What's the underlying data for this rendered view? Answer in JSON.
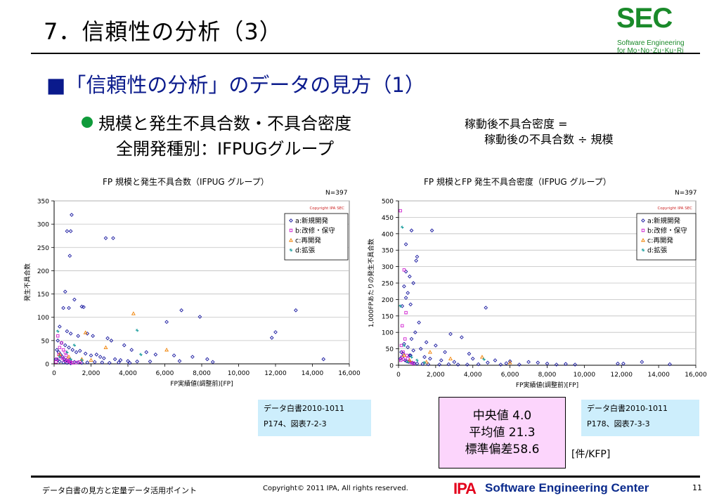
{
  "slide": {
    "title": "7．信頼性の分析（3）",
    "logo": {
      "main": "SEC",
      "sub1": "Software Engineering",
      "sub2": "for Mo･No･Zu･Ku･Ri"
    },
    "heading": "■「信頼性の分析」のデータの見方（1）",
    "bullet_line1": "規模と発生不具合数・不具合密度",
    "bullet_line2": "全開発種別：IFPUGグループ",
    "formula_line1": "稼動後不具合密度 =",
    "formula_line2": "稼動後の不具合数 ÷ 規模",
    "ref_left": {
      "line1": "データ白書2010-1011",
      "line2": "P174、図表7-2-3"
    },
    "ref_right": {
      "line1": "データ白書2010-1011",
      "line2": "P178、図表7-3-3"
    },
    "stats": {
      "median": "中央値  4.0",
      "mean": "平均値  21.3",
      "std": "標準偏差58.6"
    },
    "unit": "[件/KFP]",
    "footer": {
      "left": "データ白書の見方と定量データ活用ポイント",
      "copyright": "Copyright© 2011 IPA, All rights reserved.",
      "ipa": "IPA",
      "center": "Software Engineering Center",
      "page": "11"
    }
  },
  "colors": {
    "green": "#1a8a2a",
    "heading_blue": "#0a1a8c",
    "series_a": "#1a1aa0",
    "series_b": "#d020d0",
    "series_c": "#f08000",
    "series_d": "#20a0a0"
  },
  "chart_data": [
    {
      "type": "scatter",
      "title": "FP 規模と発生不具合数（IFPUG グループ）",
      "n_label": "N=397",
      "copyright": "Copyright IPA SEC",
      "xlabel": "FP実績値(調整前)[FP]",
      "ylabel": "発生不具合数",
      "xlim": [
        0,
        16000
      ],
      "ylim": [
        0,
        350
      ],
      "xticks": [
        0,
        2000,
        4000,
        6000,
        8000,
        10000,
        12000,
        14000,
        16000
      ],
      "xtick_labels": [
        "0",
        "2,000",
        "4,000",
        "6,000",
        "8,000",
        "10,000",
        "12,000",
        "14,000",
        "16,000"
      ],
      "yticks": [
        0,
        50,
        100,
        150,
        200,
        250,
        300,
        350
      ],
      "ytick_labels": [
        "0",
        "50",
        "100",
        "150",
        "200",
        "250",
        "300",
        "350"
      ],
      "legend_position": "top-right",
      "series": [
        {
          "name": "a:新規開発",
          "marker": "diamond",
          "points": [
            [
              950,
              320
            ],
            [
              700,
              285
            ],
            [
              900,
              285
            ],
            [
              850,
              232
            ],
            [
              2800,
              270
            ],
            [
              3200,
              270
            ],
            [
              600,
              155
            ],
            [
              1100,
              138
            ],
            [
              1500,
              123
            ],
            [
              1600,
              122
            ],
            [
              500,
              120
            ],
            [
              800,
              120
            ],
            [
              6900,
              115
            ],
            [
              13100,
              115
            ],
            [
              7900,
              101
            ],
            [
              6100,
              90
            ],
            [
              12000,
              68
            ],
            [
              11800,
              56
            ],
            [
              300,
              80
            ],
            [
              700,
              70
            ],
            [
              900,
              65
            ],
            [
              1300,
              60
            ],
            [
              1800,
              65
            ],
            [
              2100,
              60
            ],
            [
              2900,
              55
            ],
            [
              3100,
              50
            ],
            [
              3800,
              40
            ],
            [
              4200,
              30
            ],
            [
              5000,
              25
            ],
            [
              5500,
              20
            ],
            [
              6500,
              18
            ],
            [
              7500,
              15
            ],
            [
              8300,
              10
            ],
            [
              14600,
              10
            ],
            [
              200,
              50
            ],
            [
              400,
              45
            ],
            [
              600,
              40
            ],
            [
              800,
              35
            ],
            [
              1000,
              30
            ],
            [
              1200,
              25
            ],
            [
              1400,
              28
            ],
            [
              1700,
              22
            ],
            [
              2000,
              18
            ],
            [
              2300,
              20
            ],
            [
              2500,
              15
            ],
            [
              2700,
              12
            ],
            [
              3300,
              10
            ],
            [
              3600,
              8
            ],
            [
              4000,
              6
            ],
            [
              4500,
              5
            ],
            [
              5200,
              5
            ],
            [
              6800,
              6
            ],
            [
              8600,
              4
            ],
            [
              150,
              30
            ],
            [
              250,
              25
            ],
            [
              350,
              20
            ],
            [
              450,
              15
            ],
            [
              550,
              10
            ],
            [
              650,
              8
            ],
            [
              750,
              6
            ],
            [
              900,
              5
            ],
            [
              1100,
              4
            ],
            [
              1300,
              3
            ],
            [
              1500,
              2
            ],
            [
              1800,
              3
            ],
            [
              2200,
              4
            ],
            [
              2600,
              3
            ],
            [
              3000,
              2
            ],
            [
              3500,
              3
            ],
            [
              4100,
              2
            ],
            [
              100,
              10
            ],
            [
              200,
              8
            ],
            [
              300,
              5
            ],
            [
              500,
              3
            ],
            [
              700,
              2
            ],
            [
              900,
              1
            ]
          ]
        },
        {
          "name": "b:改修・保守",
          "marker": "square",
          "points": [
            [
              200,
              60
            ],
            [
              400,
              45
            ],
            [
              300,
              35
            ],
            [
              500,
              30
            ],
            [
              600,
              25
            ],
            [
              250,
              20
            ],
            [
              350,
              15
            ],
            [
              450,
              12
            ],
            [
              150,
              10
            ],
            [
              550,
              8
            ],
            [
              700,
              6
            ],
            [
              800,
              5
            ],
            [
              100,
              4
            ],
            [
              900,
              3
            ],
            [
              1000,
              2
            ],
            [
              1200,
              3
            ],
            [
              1400,
              4
            ],
            [
              650,
              18
            ],
            [
              750,
              10
            ],
            [
              850,
              8
            ]
          ]
        },
        {
          "name": "c:再開発",
          "marker": "triangle",
          "points": [
            [
              4300,
              108
            ],
            [
              1700,
              67
            ],
            [
              2800,
              35
            ],
            [
              6100,
              30
            ],
            [
              300,
              20
            ],
            [
              800,
              15
            ],
            [
              1500,
              10
            ],
            [
              2000,
              8
            ]
          ]
        },
        {
          "name": "d:拡張",
          "marker": "star",
          "points": [
            [
              4500,
              72
            ],
            [
              200,
              70
            ],
            [
              1100,
              40
            ],
            [
              700,
              25
            ],
            [
              300,
              15
            ],
            [
              900,
              10
            ],
            [
              1500,
              8
            ],
            [
              4700,
              20
            ]
          ]
        }
      ]
    },
    {
      "type": "scatter",
      "title": "FP 規模とFP 発生不具合密度（IFPUG グループ）",
      "n_label": "N=397",
      "copyright": "Copyright IPA SEC",
      "xlabel": "FP実績値(調整前)[FP]",
      "ylabel": "1,000FPあたりの発生不具合数",
      "xlim": [
        0,
        16000
      ],
      "ylim": [
        0,
        500
      ],
      "xticks": [
        0,
        2000,
        4000,
        6000,
        8000,
        10000,
        12000,
        14000,
        16000
      ],
      "xtick_labels": [
        "0",
        "2,000",
        "4,000",
        "6,000",
        "8,000",
        "10,000",
        "12,000",
        "14,000",
        "16,000"
      ],
      "yticks": [
        0,
        50,
        100,
        150,
        200,
        250,
        300,
        350,
        400,
        450,
        500
      ],
      "ytick_labels": [
        "0",
        "50",
        "100",
        "150",
        "200",
        "250",
        "300",
        "350",
        "400",
        "450",
        "500"
      ],
      "legend_position": "top-right",
      "series": [
        {
          "name": "a:新規開発",
          "marker": "diamond",
          "points": [
            [
              700,
              410
            ],
            [
              1800,
              410
            ],
            [
              400,
              368
            ],
            [
              1000,
              330
            ],
            [
              950,
              318
            ],
            [
              400,
              285
            ],
            [
              600,
              270
            ],
            [
              800,
              250
            ],
            [
              300,
              240
            ],
            [
              500,
              220
            ],
            [
              400,
              205
            ],
            [
              650,
              185
            ],
            [
              4700,
              175
            ],
            [
              200,
              180
            ],
            [
              1100,
              130
            ],
            [
              900,
              100
            ],
            [
              2800,
              95
            ],
            [
              3400,
              85
            ],
            [
              700,
              80
            ],
            [
              1500,
              70
            ],
            [
              300,
              65
            ],
            [
              2000,
              60
            ],
            [
              500,
              55
            ],
            [
              1200,
              50
            ],
            [
              800,
              45
            ],
            [
              2500,
              40
            ],
            [
              3800,
              35
            ],
            [
              600,
              30
            ],
            [
              1400,
              25
            ],
            [
              4000,
              20
            ],
            [
              5200,
              15
            ],
            [
              6000,
              12
            ],
            [
              7000,
              10
            ],
            [
              7500,
              8
            ],
            [
              8000,
              5
            ],
            [
              11800,
              5
            ],
            [
              12100,
              5
            ],
            [
              13100,
              10
            ],
            [
              14600,
              3
            ],
            [
              200,
              25
            ],
            [
              100,
              20
            ],
            [
              350,
              15
            ],
            [
              450,
              12
            ],
            [
              550,
              10
            ],
            [
              750,
              8
            ],
            [
              850,
              6
            ],
            [
              1000,
              5
            ],
            [
              1300,
              4
            ],
            [
              1600,
              3
            ],
            [
              2200,
              2
            ],
            [
              2700,
              3
            ],
            [
              3200,
              2
            ],
            [
              3700,
              2
            ],
            [
              4300,
              3
            ],
            [
              5500,
              2
            ],
            [
              6500,
              2
            ],
            [
              8500,
              2
            ],
            [
              9500,
              2
            ],
            [
              150,
              40
            ],
            [
              250,
              35
            ],
            [
              650,
              30
            ],
            [
              1700,
              20
            ],
            [
              2300,
              15
            ],
            [
              3000,
              10
            ],
            [
              4800,
              8
            ],
            [
              5800,
              6
            ],
            [
              9000,
              4
            ]
          ]
        },
        {
          "name": "b:改修・保守",
          "marker": "square",
          "points": [
            [
              100,
              470
            ],
            [
              300,
              290
            ],
            [
              400,
              160
            ],
            [
              200,
              120
            ],
            [
              350,
              80
            ],
            [
              150,
              60
            ],
            [
              250,
              40
            ],
            [
              450,
              30
            ],
            [
              500,
              20
            ],
            [
              120,
              15
            ],
            [
              600,
              10
            ],
            [
              700,
              8
            ],
            [
              800,
              5
            ],
            [
              180,
              25
            ],
            [
              280,
              18
            ]
          ]
        },
        {
          "name": "c:再開発",
          "marker": "triangle",
          "points": [
            [
              4500,
              25
            ],
            [
              1700,
              40
            ],
            [
              300,
              30
            ],
            [
              2800,
              20
            ],
            [
              600,
              15
            ],
            [
              1500,
              10
            ],
            [
              6000,
              8
            ]
          ]
        },
        {
          "name": "d:拡張",
          "marker": "star",
          "points": [
            [
              200,
              420
            ],
            [
              100,
              180
            ],
            [
              300,
              60
            ],
            [
              4600,
              18
            ],
            [
              700,
              25
            ],
            [
              1000,
              15
            ],
            [
              500,
              10
            ],
            [
              1400,
              8
            ]
          ]
        }
      ]
    }
  ]
}
